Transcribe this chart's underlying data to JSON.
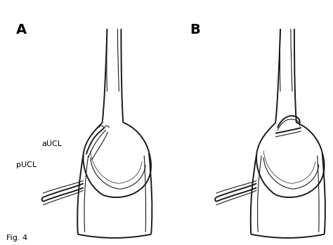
{
  "background_color": "#ffffff",
  "label_A": "A",
  "label_B": "B",
  "label_aUCL": "aUCL",
  "label_pUCL": "pUCL",
  "label_fig": "Fig. 4",
  "line_color": "#1a1a1a",
  "label_color": "#000000",
  "fig_width": 4.74,
  "fig_height": 3.49,
  "dpi": 100
}
